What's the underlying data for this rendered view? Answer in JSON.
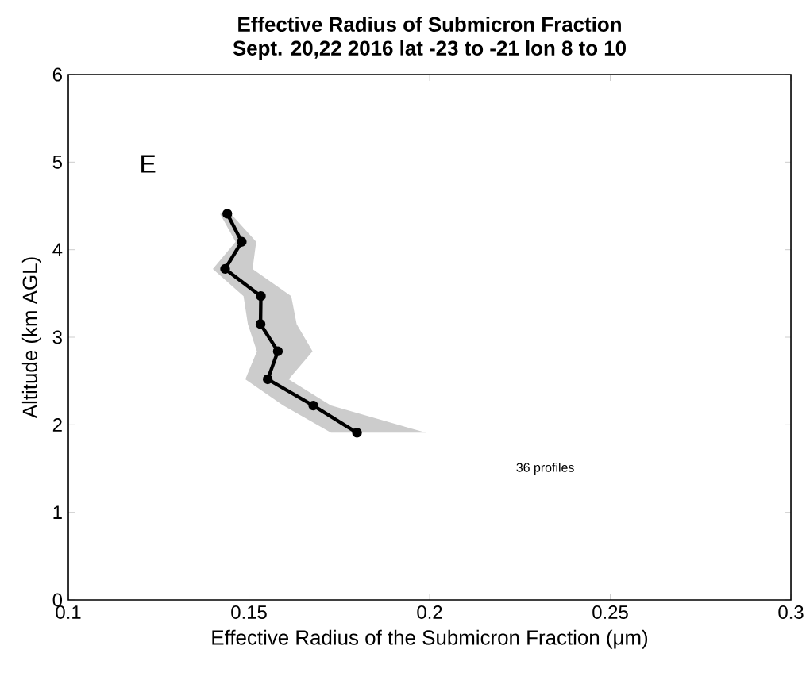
{
  "chart_data": {
    "type": "line",
    "orientation": "horizontal",
    "title": "Effective Radius of Submicron Fraction",
    "subtitle": "Sept. 20,22 2016 lat -23 to -21 lon 8 to 10",
    "xlabel": "Effective Radius of the Submicron Fraction (μm)",
    "ylabel": "Altitude (km AGL)",
    "series": [
      {
        "color": "#000000",
        "x": [
          4.41,
          4.09,
          3.78,
          3.47,
          3.15,
          2.84,
          2.52,
          2.22,
          1.91
        ],
        "values": [
          0.144,
          0.148,
          0.1434,
          0.1533,
          0.1532,
          0.158,
          0.1552,
          0.1678,
          0.1799
        ],
        "lower": [
          0.142,
          0.1463,
          0.14,
          0.1485,
          0.1497,
          0.1522,
          0.149,
          0.1595,
          0.1727
        ],
        "upper": [
          0.145,
          0.152,
          0.151,
          0.1617,
          0.1632,
          0.1676,
          0.161,
          0.1727,
          0.199
        ]
      }
    ],
    "marker": "circle",
    "line_style": "solid",
    "xlim": [
      0.1,
      0.3
    ],
    "xticks": [
      0.1,
      0.15,
      0.2,
      0.25,
      0.3
    ],
    "ylim": [
      0,
      6
    ],
    "yticks": [
      0,
      1,
      2,
      3,
      4,
      5,
      6
    ],
    "annotations": [
      "E",
      "36 profiles"
    ]
  }
}
